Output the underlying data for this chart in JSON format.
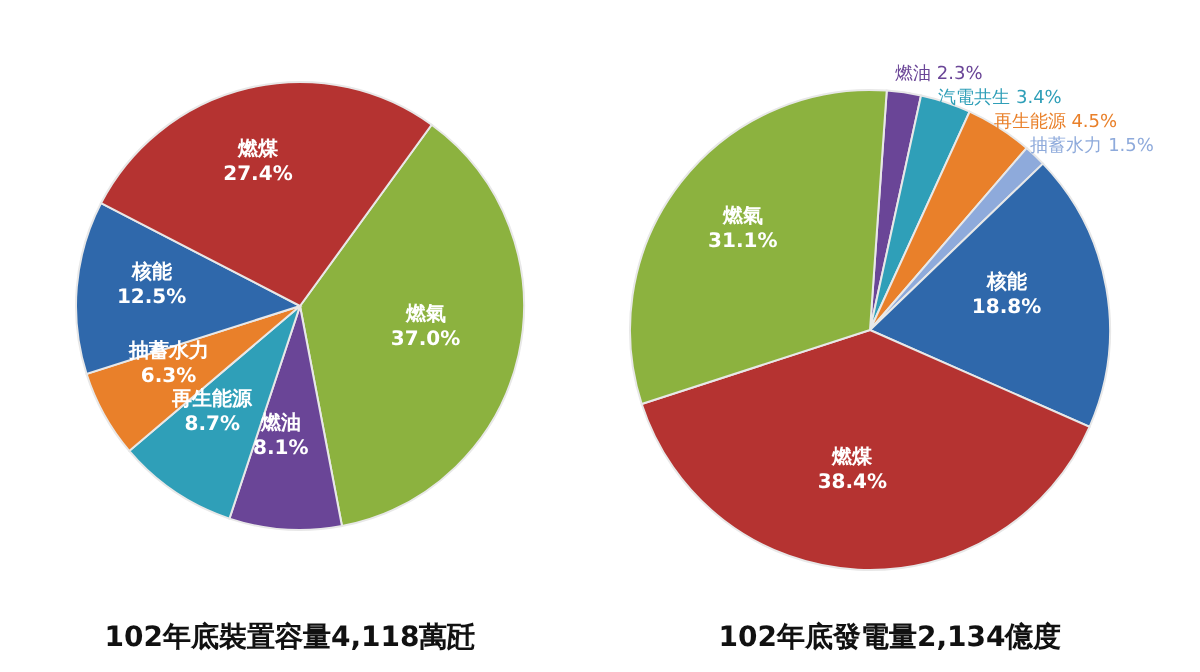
{
  "chart_data": [
    {
      "type": "pie",
      "title": "102年底裝置容量4,118萬瓩",
      "categories": [
        "燃氣",
        "燃油",
        "再生能源",
        "抽蓄水力",
        "核能",
        "燃煤"
      ],
      "values": [
        37.0,
        8.1,
        8.7,
        6.3,
        12.5,
        27.4
      ],
      "value_labels": [
        "37.0%",
        "8.1%",
        "8.7%",
        "6.3%",
        "12.5%",
        "27.4%"
      ],
      "colors": [
        "#8cb23f",
        "#6a4597",
        "#2f9fb8",
        "#e9802a",
        "#2f68ab",
        "#b53331"
      ]
    },
    {
      "type": "pie",
      "title": "102年底發電量2,134億度",
      "categories": [
        "燃油",
        "汽電共生",
        "再生能源",
        "抽蓄水力",
        "核能",
        "燃煤",
        "燃氣"
      ],
      "values": [
        2.3,
        3.4,
        4.5,
        1.5,
        18.8,
        38.4,
        31.1
      ],
      "value_labels": [
        "2.3%",
        "3.4%",
        "4.5%",
        "1.5%",
        "18.8%",
        "38.4%",
        "31.1%"
      ],
      "colors": [
        "#6a4597",
        "#2f9fb8",
        "#e9802a",
        "#8eaadb",
        "#2f68ab",
        "#b53331",
        "#8cb23f"
      ]
    }
  ]
}
